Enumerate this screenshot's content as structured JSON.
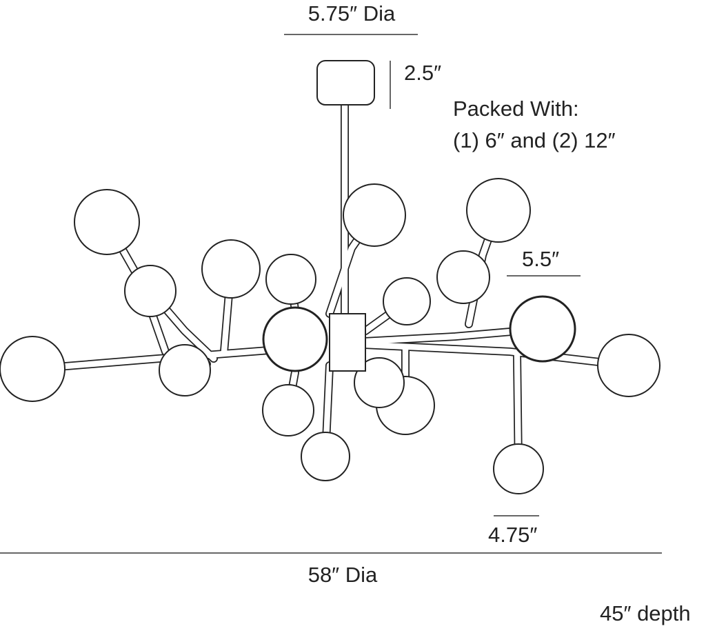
{
  "dimensions": {
    "canopy_diameter": "5.75″ Dia",
    "canopy_height": "2.5″",
    "packed_with": {
      "title": "Packed With:",
      "contents": "(1) 6″ and (2) 12″"
    },
    "large_globe": "5.5″",
    "small_globe": "4.75″",
    "overall_diameter": "58″ Dia",
    "depth": "45″ depth"
  }
}
